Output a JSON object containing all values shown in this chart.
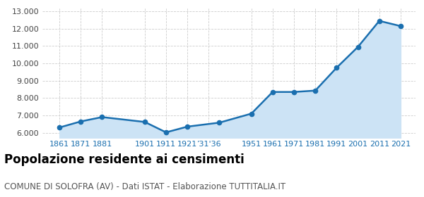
{
  "years": [
    1861,
    1871,
    1881,
    1901,
    1911,
    1921,
    1936,
    1951,
    1961,
    1971,
    1981,
    1991,
    2001,
    2011,
    2021
  ],
  "population": [
    6300,
    6650,
    6900,
    6620,
    6020,
    6350,
    6580,
    7100,
    8350,
    8350,
    8430,
    9750,
    10950,
    12450,
    12150
  ],
  "xtick_positions": [
    1861,
    1871,
    1881,
    1901,
    1911,
    1921,
    1931,
    1951,
    1961,
    1971,
    1981,
    1991,
    2001,
    2011,
    2021
  ],
  "xtick_labels": [
    "1861",
    "1871",
    "1881",
    "1901",
    "1911",
    "1921",
    "’31'36",
    "1951",
    "1961",
    "1971",
    "1981",
    "1991",
    "2001",
    "2011",
    "2021"
  ],
  "ylim": [
    5700,
    13200
  ],
  "xlim": [
    1853,
    2028
  ],
  "yticks": [
    6000,
    7000,
    8000,
    9000,
    10000,
    11000,
    12000,
    13000
  ],
  "line_color": "#1a6faf",
  "fill_color": "#cce3f5",
  "marker_color": "#1a6faf",
  "grid_color": "#cccccc",
  "background_color": "#ffffff",
  "fill_baseline": 5700,
  "title": "Popolazione residente ai censimenti",
  "subtitle": "COMUNE DI SOLOFRA (AV) - Dati ISTAT - Elaborazione TUTTITALIA.IT",
  "title_fontsize": 12,
  "subtitle_fontsize": 8.5
}
